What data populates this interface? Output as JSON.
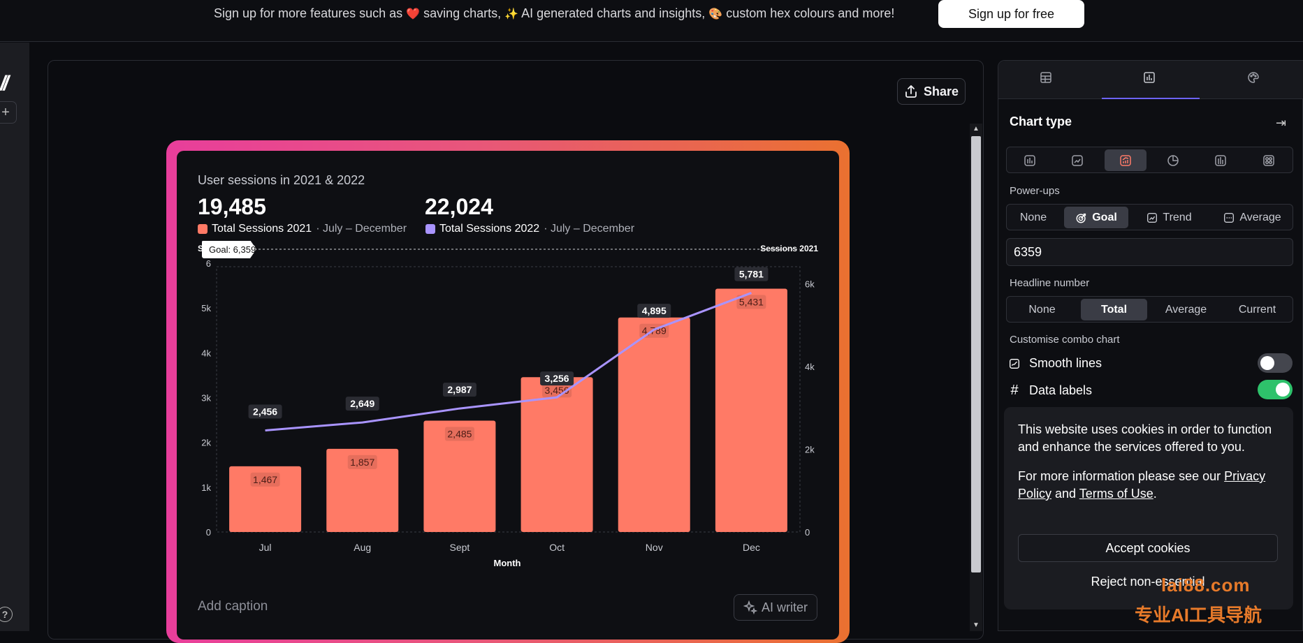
{
  "topbar": {
    "promo_text_1": "Sign up for more features such as",
    "promo_emoji_1": "❤️",
    "promo_text_2": "saving charts,",
    "promo_emoji_2": "✨",
    "promo_text_3": "AI generated charts and insights,",
    "promo_emoji_3": "🎨",
    "promo_text_4": "custom hex colours and more!",
    "signup_label": "Sign up for free"
  },
  "rail": {
    "logo": "//",
    "plus": "+",
    "help": "?"
  },
  "share_label": "Share",
  "chart_card": {
    "title": "User sessions in 2021 & 2022",
    "headline_1": "19,485",
    "headline_2": "22,024",
    "legend_1_name": "Total Sessions 2021",
    "legend_1_range": "· July – December",
    "legend_2_name": "Total Sessions 2022",
    "legend_2_range": "· July – December",
    "caption_placeholder": "Add caption",
    "ai_writer_label": "AI writer"
  },
  "chart_data": {
    "type": "bar",
    "categories": [
      "Jul",
      "Aug",
      "Sept",
      "Oct",
      "Nov",
      "Dec"
    ],
    "series": [
      {
        "name": "Total Sessions 2021",
        "type": "bar",
        "values": [
          1467,
          1857,
          2485,
          3456,
          4789,
          5431
        ],
        "labels": [
          "1,467",
          "1,857",
          "2,485",
          "3,456",
          "4,789",
          "5,431"
        ],
        "color": "#ff7a66"
      },
      {
        "name": "Total Sessions 2022",
        "type": "line",
        "values": [
          2456,
          2649,
          2987,
          3256,
          4895,
          5781
        ],
        "labels": [
          "2,456",
          "2,649",
          "2,987",
          "3,256",
          "4,895",
          "5,781"
        ],
        "color": "#a994ff"
      }
    ],
    "xlabel": "Month",
    "y_left_label": "Sessions 2022",
    "y_right_label": "Sessions 2021",
    "y_left_ticks": [
      "0",
      "1k",
      "2k",
      "3k",
      "4k",
      "5k",
      "6"
    ],
    "y_left_range": [
      0,
      6000
    ],
    "y_right_ticks": [
      "0",
      "2k",
      "4k",
      "6k"
    ],
    "y_right_range": [
      0,
      6500
    ],
    "goal_label": "Goal: 6,359",
    "goal_value": 6359,
    "grid": "dashed outer frame"
  },
  "panel": {
    "tabs": [
      {
        "name": "data",
        "icon": "table-icon"
      },
      {
        "name": "chart",
        "icon": "chart-icon"
      },
      {
        "name": "style",
        "icon": "palette-icon"
      }
    ],
    "chart_type_heading": "Chart type",
    "chart_types": [
      "bar",
      "line",
      "combo",
      "pie",
      "column",
      "grid"
    ],
    "chart_type_selected": "combo",
    "powerups_label": "Power-ups",
    "powerups": {
      "none": "None",
      "goal": "Goal",
      "trend": "Trend",
      "average": "Average"
    },
    "powerup_selected": "Goal",
    "goal_input_value": "6359",
    "headline_label": "Headline number",
    "headline": {
      "none": "None",
      "total": "Total",
      "average": "Average",
      "current": "Current"
    },
    "headline_selected": "Total",
    "combo_label": "Customise combo chart",
    "smooth_lines_label": "Smooth lines",
    "smooth_lines_on": false,
    "data_labels_label": "Data labels",
    "data_labels_on": true
  },
  "cookie": {
    "message_1": "This website uses cookies in order to function and enhance the services offered to you.",
    "message_2_prefix": "For more information please see our",
    "privacy_link": "Privacy Policy",
    "and_text": "and",
    "terms_link": "Terms of Use",
    "period": ".",
    "accept_label": "Accept cookies",
    "reject_label": "Reject non-essential"
  },
  "watermark": {
    "line1": "lai88.com",
    "line2": "专业AI工具导航"
  },
  "colors": {
    "bar": "#ff7a66",
    "line": "#a994ff",
    "accent": "#6d63ff",
    "toggle_on": "#2ec26b"
  }
}
